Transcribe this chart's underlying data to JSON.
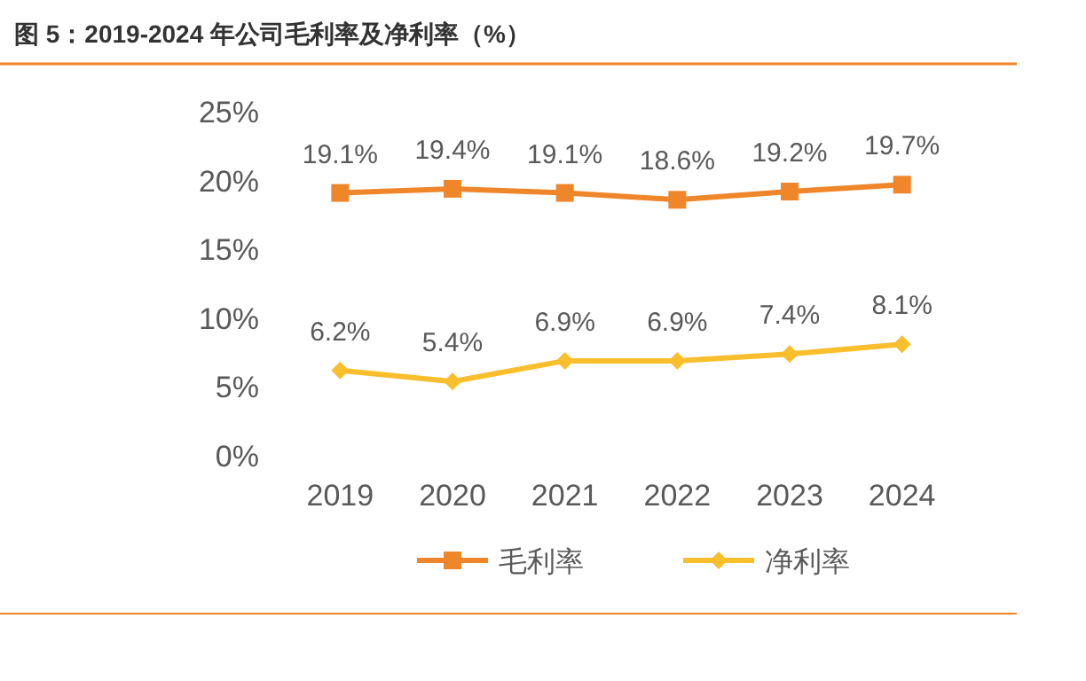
{
  "chart_data": {
    "type": "line",
    "title": "图 5：2019-2024 年公司毛利率及净利率（%）",
    "categories": [
      "2019",
      "2020",
      "2021",
      "2022",
      "2023",
      "2024"
    ],
    "series": [
      {
        "name": "毛利率",
        "color": "#f0862a",
        "marker": "square",
        "values": [
          19.1,
          19.4,
          19.1,
          18.6,
          19.2,
          19.7
        ],
        "value_labels": [
          "19.1%",
          "19.4%",
          "19.1%",
          "18.6%",
          "19.2%",
          "19.7%"
        ]
      },
      {
        "name": "净利率",
        "color": "#f9be2c",
        "marker": "diamond",
        "values": [
          6.2,
          5.4,
          6.9,
          6.9,
          7.4,
          8.1
        ],
        "value_labels": [
          "6.2%",
          "5.4%",
          "6.9%",
          "6.9%",
          "7.4%",
          "8.1%"
        ]
      }
    ],
    "ylim": [
      0,
      25
    ],
    "yticks": [
      {
        "value": 0,
        "label": "0%"
      },
      {
        "value": 5,
        "label": "5%"
      },
      {
        "value": 10,
        "label": "10%"
      },
      {
        "value": 15,
        "label": "15%"
      },
      {
        "value": 20,
        "label": "20%"
      },
      {
        "value": 25,
        "label": "25%"
      }
    ],
    "grid": false,
    "legend": "bottom",
    "line_style": "solid"
  }
}
